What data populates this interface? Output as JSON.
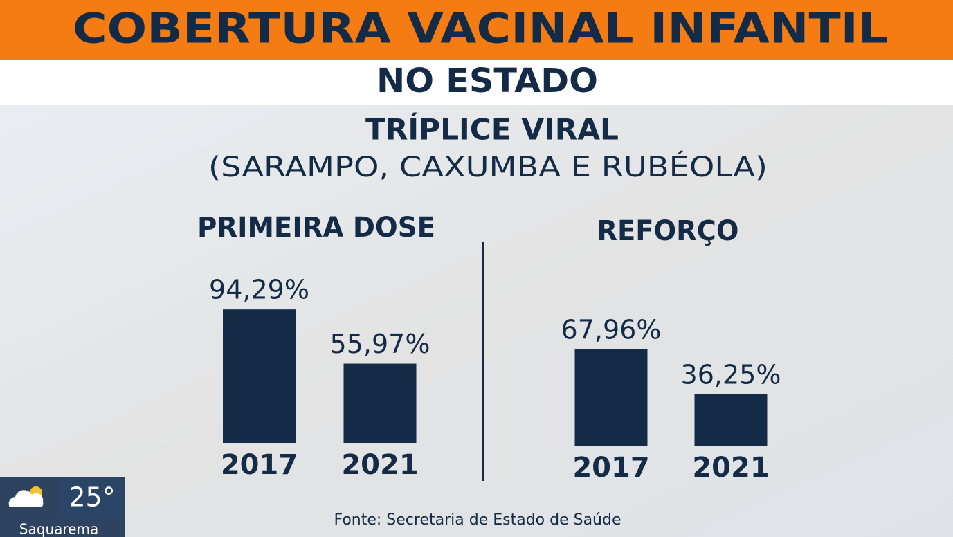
{
  "header": {
    "title": "COBERTURA VACINAL INFANTIL",
    "subtitle": "NO ESTADO"
  },
  "topic": {
    "title": "TRÍPLICE VIRAL",
    "subtitle": "(SARAMPO, CAXUMBA E RUBÉOLA)"
  },
  "chart_data": [
    {
      "type": "bar",
      "title": "PRIMEIRA DOSE",
      "categories": [
        "2017",
        "2021"
      ],
      "values": [
        94.29,
        55.97
      ],
      "value_labels": [
        "94,29%",
        "55,97%"
      ],
      "color": "#142b47"
    },
    {
      "type": "bar",
      "title": "REFORÇO",
      "categories": [
        "2017",
        "2021"
      ],
      "values": [
        67.96,
        36.25
      ],
      "value_labels": [
        "67,96%",
        "36,25%"
      ],
      "color": "#142b47"
    }
  ],
  "source": "Fonte: Secretaria de Estado de Saúde",
  "weather": {
    "temperature": "25°",
    "city": "Saquarema"
  }
}
